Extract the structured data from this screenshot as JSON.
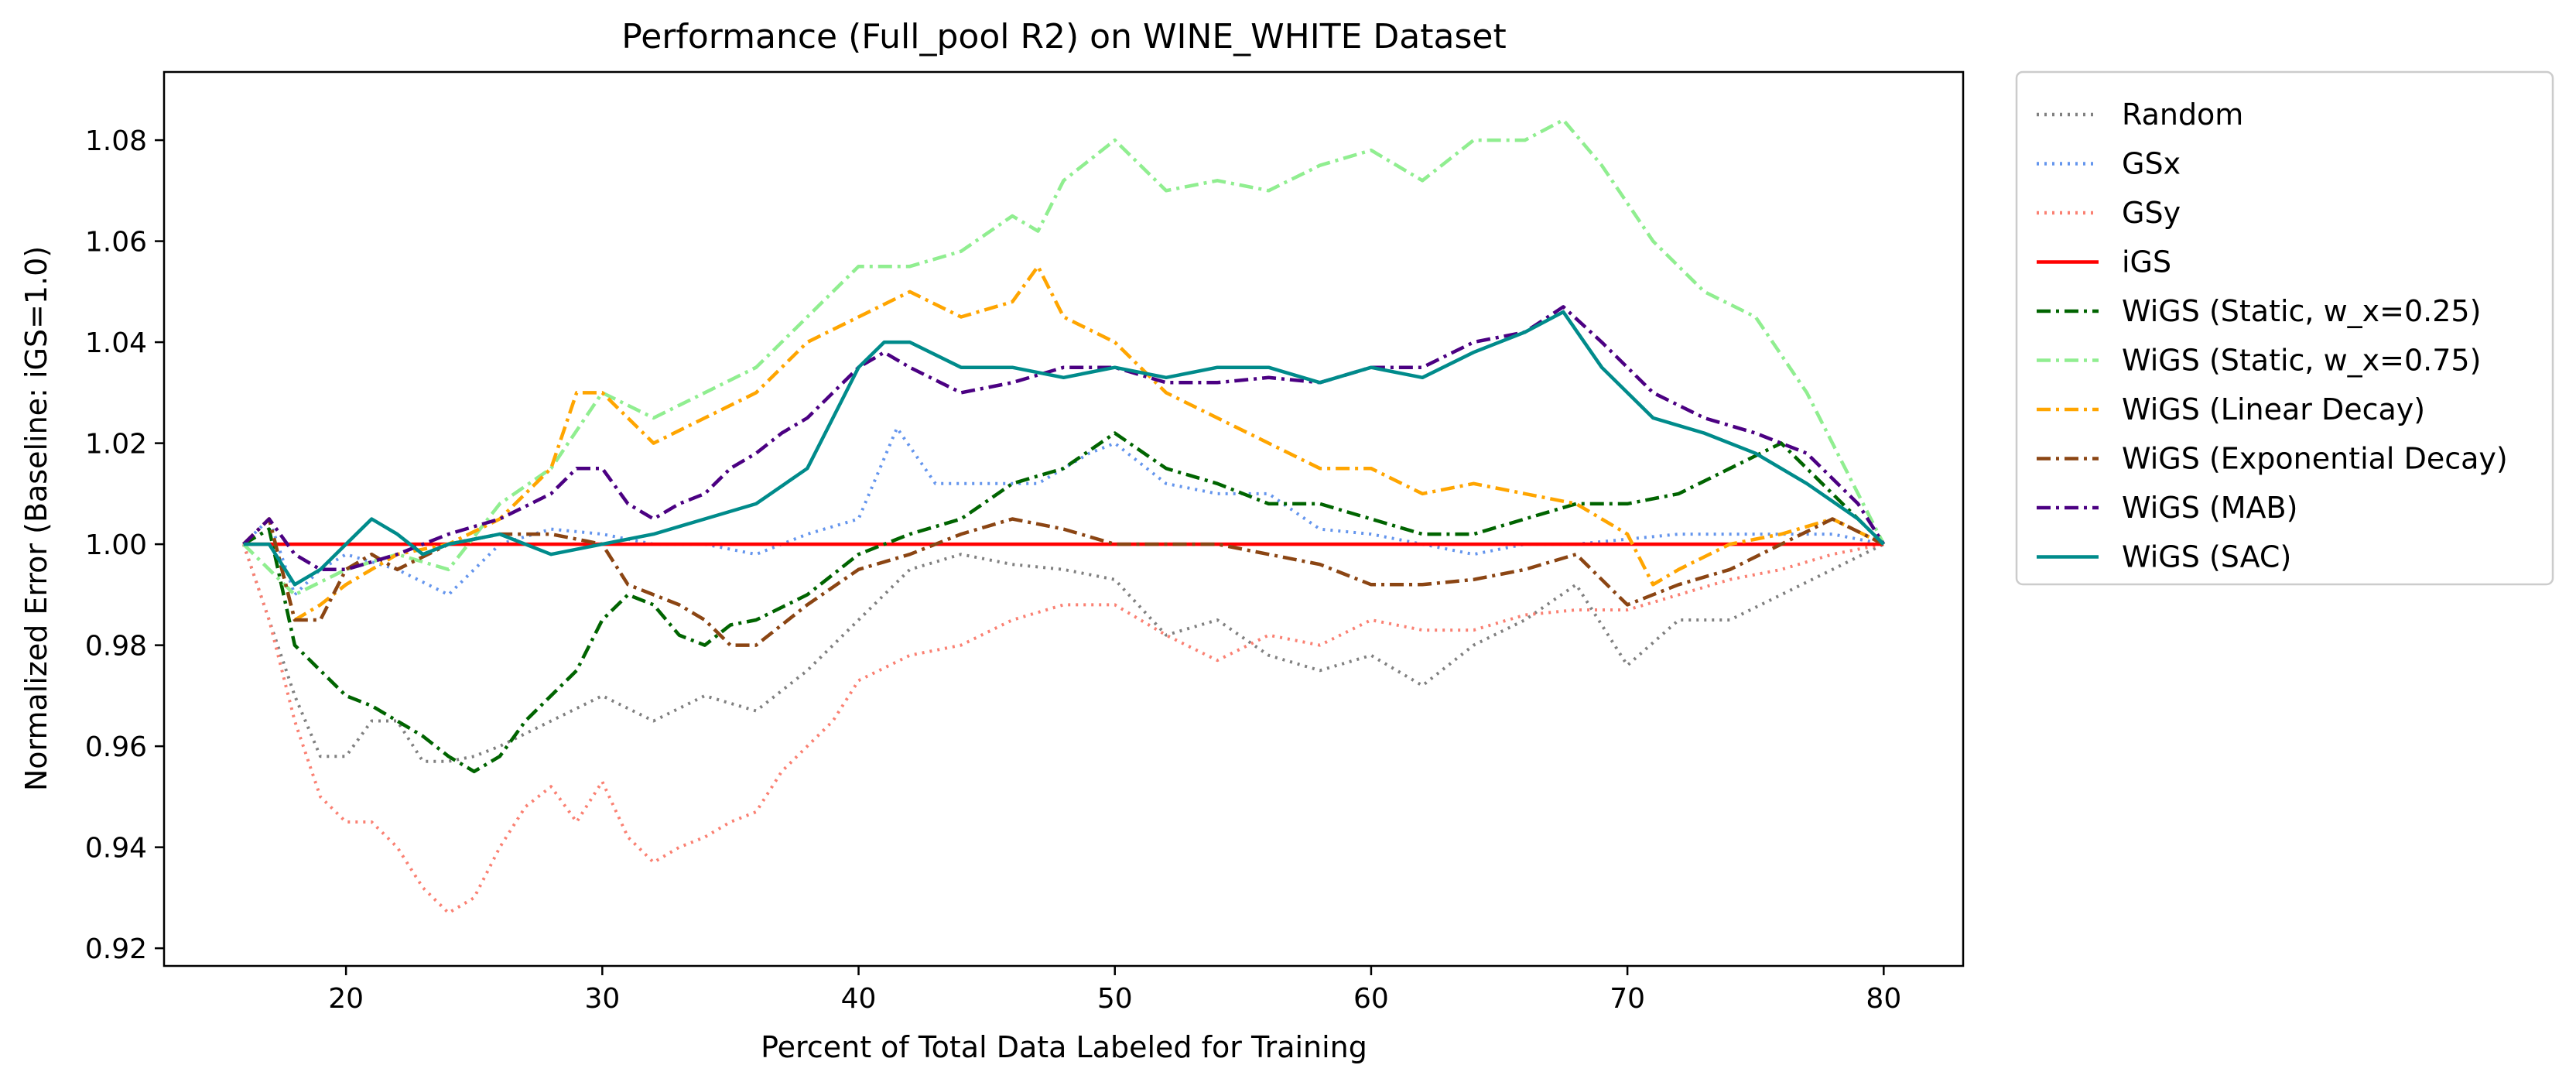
{
  "chart_data": {
    "type": "line",
    "title": "Performance (Full_pool R2) on WINE_WHITE Dataset",
    "xlabel": "Percent of Total Data Labeled for Training",
    "ylabel": "Normalized Error (Baseline: iGS=1.0)",
    "xlim": [
      12.9,
      83.1
    ],
    "ylim": [
      0.9165,
      1.0935
    ],
    "xticks": [
      20,
      30,
      40,
      50,
      60,
      70,
      80
    ],
    "xtick_labels": [
      "20",
      "30",
      "40",
      "50",
      "60",
      "70",
      "80"
    ],
    "yticks": [
      0.92,
      0.94,
      0.96,
      0.98,
      1.0,
      1.02,
      1.04,
      1.06,
      1.08
    ],
    "ytick_labels": [
      "0.92",
      "0.94",
      "0.96",
      "0.98",
      "1.00",
      "1.02",
      "1.04",
      "1.06",
      "1.08"
    ],
    "grid": false,
    "legend_position": "outside-right",
    "series": [
      {
        "name": "Random",
        "color": "#808080",
        "dash": "dotted",
        "x": [
          16,
          17,
          18,
          19,
          20,
          21,
          22,
          23,
          24,
          25,
          26,
          28,
          30,
          32,
          34,
          36,
          38,
          40,
          42,
          44,
          46,
          48,
          50,
          52,
          54,
          56,
          58,
          60,
          62,
          64,
          66,
          68,
          70,
          72,
          74,
          76,
          78,
          80
        ],
        "y": [
          1.0,
          0.985,
          0.97,
          0.958,
          0.958,
          0.965,
          0.965,
          0.957,
          0.957,
          0.958,
          0.96,
          0.965,
          0.97,
          0.965,
          0.97,
          0.967,
          0.975,
          0.985,
          0.995,
          0.998,
          0.996,
          0.995,
          0.993,
          0.982,
          0.985,
          0.978,
          0.975,
          0.978,
          0.972,
          0.98,
          0.985,
          0.992,
          0.976,
          0.985,
          0.985,
          0.99,
          0.995,
          1.0
        ]
      },
      {
        "name": "GSx",
        "color": "#6495ED",
        "dash": "dotted",
        "x": [
          16,
          17,
          18,
          19,
          20,
          22,
          24,
          26,
          28,
          30,
          32,
          34,
          36,
          38,
          40,
          41.5,
          43,
          45,
          47,
          49,
          50,
          52,
          54,
          56,
          58,
          60,
          62,
          64,
          66,
          68,
          70,
          72,
          74,
          76,
          78,
          80
        ],
        "y": [
          1.0,
          1.005,
          0.99,
          0.995,
          0.998,
          0.995,
          0.99,
          1.0,
          1.003,
          1.002,
          1.0,
          1.0,
          0.998,
          1.002,
          1.005,
          1.023,
          1.012,
          1.012,
          1.012,
          1.018,
          1.02,
          1.012,
          1.01,
          1.01,
          1.003,
          1.002,
          1.0,
          0.998,
          1.0,
          1.0,
          1.001,
          1.002,
          1.002,
          1.002,
          1.002,
          1.0
        ]
      },
      {
        "name": "GSy",
        "color": "#FA8072",
        "dash": "dotted",
        "x": [
          16,
          17,
          18,
          19,
          20,
          21,
          22,
          23,
          24,
          25,
          26,
          27,
          28,
          29,
          30,
          31,
          32,
          33,
          34,
          35,
          36,
          37,
          38,
          39,
          40,
          42,
          44,
          46,
          48,
          50,
          52,
          54,
          56,
          58,
          60,
          62,
          64,
          66,
          68,
          70,
          72,
          74,
          76,
          78,
          80
        ],
        "y": [
          1.0,
          0.985,
          0.965,
          0.95,
          0.945,
          0.945,
          0.94,
          0.932,
          0.927,
          0.93,
          0.94,
          0.948,
          0.952,
          0.945,
          0.953,
          0.942,
          0.937,
          0.94,
          0.942,
          0.945,
          0.947,
          0.955,
          0.96,
          0.965,
          0.973,
          0.978,
          0.98,
          0.985,
          0.988,
          0.988,
          0.982,
          0.977,
          0.982,
          0.98,
          0.985,
          0.983,
          0.983,
          0.986,
          0.987,
          0.987,
          0.99,
          0.993,
          0.995,
          0.998,
          1.0
        ]
      },
      {
        "name": "iGS",
        "color": "#FF0000",
        "dash": "solid",
        "x": [
          16,
          80
        ],
        "y": [
          1.0,
          1.0
        ]
      },
      {
        "name": "WiGS (Static, w_x=0.25)",
        "color": "#006400",
        "dash": "dashdot",
        "x": [
          16,
          17,
          18,
          19,
          20,
          21,
          22,
          23,
          24,
          25,
          26,
          27,
          28,
          29,
          30,
          31,
          32,
          33,
          34,
          35,
          36,
          38,
          40,
          42,
          44,
          46,
          48,
          50,
          52,
          54,
          56,
          58,
          60,
          62,
          64,
          66,
          68,
          70,
          72,
          74,
          76,
          78,
          80
        ],
        "y": [
          1.0,
          1.003,
          0.98,
          0.975,
          0.97,
          0.968,
          0.965,
          0.962,
          0.958,
          0.955,
          0.958,
          0.965,
          0.97,
          0.975,
          0.985,
          0.99,
          0.988,
          0.982,
          0.98,
          0.984,
          0.985,
          0.99,
          0.998,
          1.002,
          1.005,
          1.012,
          1.015,
          1.022,
          1.015,
          1.012,
          1.008,
          1.008,
          1.005,
          1.002,
          1.002,
          1.005,
          1.008,
          1.008,
          1.01,
          1.015,
          1.02,
          1.01,
          1.0
        ]
      },
      {
        "name": "WiGS (Static, w_x=0.75)",
        "color": "#90EE90",
        "dash": "dashdot",
        "x": [
          16,
          18,
          20,
          22,
          24,
          26,
          28,
          30,
          32,
          34,
          36,
          38,
          40,
          42,
          44,
          46,
          47,
          48,
          50,
          52,
          54,
          56,
          58,
          60,
          62,
          64,
          66,
          67.5,
          69,
          71,
          73,
          75,
          77,
          79,
          80
        ],
        "y": [
          1.0,
          0.99,
          0.995,
          0.998,
          0.995,
          1.008,
          1.015,
          1.03,
          1.025,
          1.03,
          1.035,
          1.045,
          1.055,
          1.055,
          1.058,
          1.065,
          1.062,
          1.072,
          1.08,
          1.07,
          1.072,
          1.07,
          1.075,
          1.078,
          1.072,
          1.08,
          1.08,
          1.084,
          1.075,
          1.06,
          1.05,
          1.045,
          1.03,
          1.01,
          1.0
        ]
      },
      {
        "name": "WiGS (Linear Decay)",
        "color": "#FFA500",
        "dash": "dashdot",
        "x": [
          16,
          17,
          18,
          19,
          20,
          22,
          24,
          26,
          28,
          29,
          30,
          32,
          34,
          36,
          38,
          40,
          42,
          44,
          46,
          47,
          48,
          50,
          52,
          54,
          56,
          58,
          60,
          62,
          64,
          66,
          68,
          70,
          71,
          72,
          74,
          76,
          78,
          80
        ],
        "y": [
          1.0,
          1.005,
          0.985,
          0.988,
          0.992,
          0.998,
          1.0,
          1.005,
          1.015,
          1.03,
          1.03,
          1.02,
          1.025,
          1.03,
          1.04,
          1.045,
          1.05,
          1.045,
          1.048,
          1.055,
          1.045,
          1.04,
          1.03,
          1.025,
          1.02,
          1.015,
          1.015,
          1.01,
          1.012,
          1.01,
          1.008,
          1.002,
          0.992,
          0.995,
          1.0,
          1.002,
          1.005,
          1.0
        ]
      },
      {
        "name": "WiGS (Exponential Decay)",
        "color": "#8B4513",
        "dash": "dashdot",
        "x": [
          16,
          17,
          18,
          19,
          20,
          21,
          22,
          24,
          26,
          28,
          30,
          31,
          32,
          33,
          34,
          35,
          36,
          38,
          40,
          42,
          44,
          46,
          48,
          50,
          52,
          54,
          56,
          58,
          60,
          62,
          64,
          66,
          68,
          70,
          72,
          74,
          76,
          78,
          80
        ],
        "y": [
          1.0,
          1.005,
          0.985,
          0.985,
          0.995,
          0.998,
          0.995,
          1.0,
          1.002,
          1.002,
          1.0,
          0.992,
          0.99,
          0.988,
          0.985,
          0.98,
          0.98,
          0.988,
          0.995,
          0.998,
          1.002,
          1.005,
          1.003,
          1.0,
          1.0,
          1.0,
          0.998,
          0.996,
          0.992,
          0.992,
          0.993,
          0.995,
          0.998,
          0.988,
          0.992,
          0.995,
          1.0,
          1.005,
          1.0
        ]
      },
      {
        "name": "WiGS (MAB)",
        "color": "#4B0082",
        "dash": "dashdot",
        "x": [
          16,
          17,
          18,
          19,
          20,
          22,
          24,
          26,
          28,
          29,
          30,
          31,
          32,
          33,
          34,
          35,
          36,
          37,
          38,
          39,
          40,
          41,
          42,
          44,
          46,
          48,
          50,
          52,
          54,
          56,
          58,
          60,
          62,
          64,
          66,
          67.5,
          69,
          71,
          73,
          75,
          77,
          79,
          80
        ],
        "y": [
          1.0,
          1.005,
          0.998,
          0.995,
          0.995,
          0.998,
          1.002,
          1.005,
          1.01,
          1.015,
          1.015,
          1.008,
          1.005,
          1.008,
          1.01,
          1.015,
          1.018,
          1.022,
          1.025,
          1.03,
          1.035,
          1.038,
          1.035,
          1.03,
          1.032,
          1.035,
          1.035,
          1.032,
          1.032,
          1.033,
          1.032,
          1.035,
          1.035,
          1.04,
          1.042,
          1.047,
          1.04,
          1.03,
          1.025,
          1.022,
          1.018,
          1.008,
          1.0
        ]
      },
      {
        "name": "WiGS (SAC)",
        "color": "#008B8B",
        "dash": "solid",
        "x": [
          16,
          17,
          18,
          19,
          20,
          21,
          22,
          23,
          24,
          26,
          28,
          30,
          32,
          34,
          36,
          38,
          39,
          40,
          41,
          42,
          44,
          46,
          48,
          50,
          52,
          54,
          56,
          58,
          60,
          62,
          64,
          66,
          67.5,
          69,
          71,
          73,
          75,
          77,
          79,
          80
        ],
        "y": [
          1.0,
          1.0,
          0.992,
          0.995,
          1.0,
          1.005,
          1.002,
          0.998,
          1.0,
          1.002,
          0.998,
          1.0,
          1.002,
          1.005,
          1.008,
          1.015,
          1.025,
          1.035,
          1.04,
          1.04,
          1.035,
          1.035,
          1.033,
          1.035,
          1.033,
          1.035,
          1.035,
          1.032,
          1.035,
          1.033,
          1.038,
          1.042,
          1.046,
          1.035,
          1.025,
          1.022,
          1.018,
          1.012,
          1.005,
          1.0
        ]
      }
    ]
  }
}
